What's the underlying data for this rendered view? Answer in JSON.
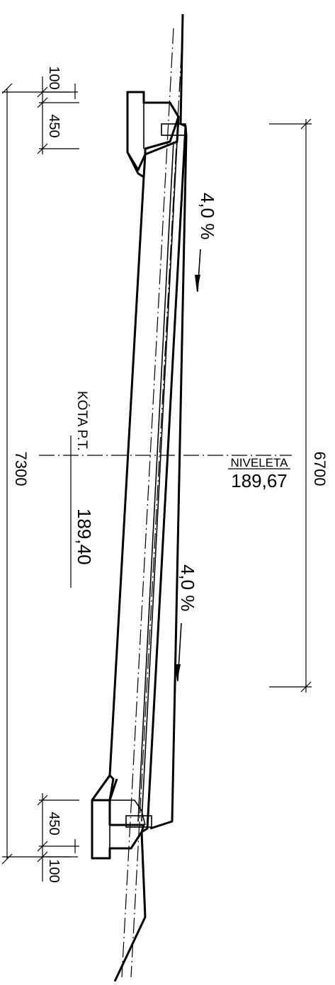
{
  "dimensions": {
    "total_left": "7300",
    "total_right": "6700",
    "top_cap": "100",
    "top_edge": "450",
    "bottom_edge": "450",
    "bottom_cap": "100"
  },
  "slopes": {
    "upper": "4,0 %",
    "lower": "4,0 %"
  },
  "levels": {
    "kota_label": "KÓTA P.T.",
    "kota_value": "189,40",
    "niveleta_label": "NIVELETA",
    "niveleta_value": "189,67"
  }
}
